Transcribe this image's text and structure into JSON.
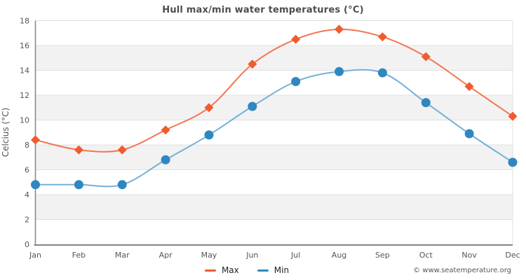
{
  "chart_data": {
    "type": "line",
    "title": "Hull max/min water temperatures (°C)",
    "ylabel": "Celcius (°C)",
    "xlabel": "",
    "categories": [
      "Jan",
      "Feb",
      "Mar",
      "Apr",
      "May",
      "Jun",
      "Jul",
      "Aug",
      "Sep",
      "Oct",
      "Nov",
      "Dec"
    ],
    "series": [
      {
        "name": "Max",
        "marker": "diamond",
        "line_color": "#f4764f",
        "marker_color": "#ef5b2f",
        "values": [
          8.4,
          7.6,
          7.6,
          9.2,
          11.0,
          14.5,
          16.5,
          17.3,
          16.7,
          15.1,
          12.7,
          10.3
        ]
      },
      {
        "name": "Min",
        "marker": "circle",
        "line_color": "#74b0d8",
        "marker_color": "#2f87c0",
        "values": [
          4.8,
          4.8,
          4.8,
          6.8,
          8.8,
          11.1,
          13.1,
          13.9,
          13.8,
          11.4,
          8.9,
          6.6
        ]
      }
    ],
    "ylim": [
      0,
      18
    ],
    "ytick_step": 2,
    "grid": true,
    "band_color": "#f2f2f2",
    "gridline_color": "#e0e0e0",
    "axis_color": "#848484",
    "tick_text_color": "#555",
    "legend_position": "bottom"
  },
  "footer": {
    "text": "© www.seatemperature.org"
  }
}
